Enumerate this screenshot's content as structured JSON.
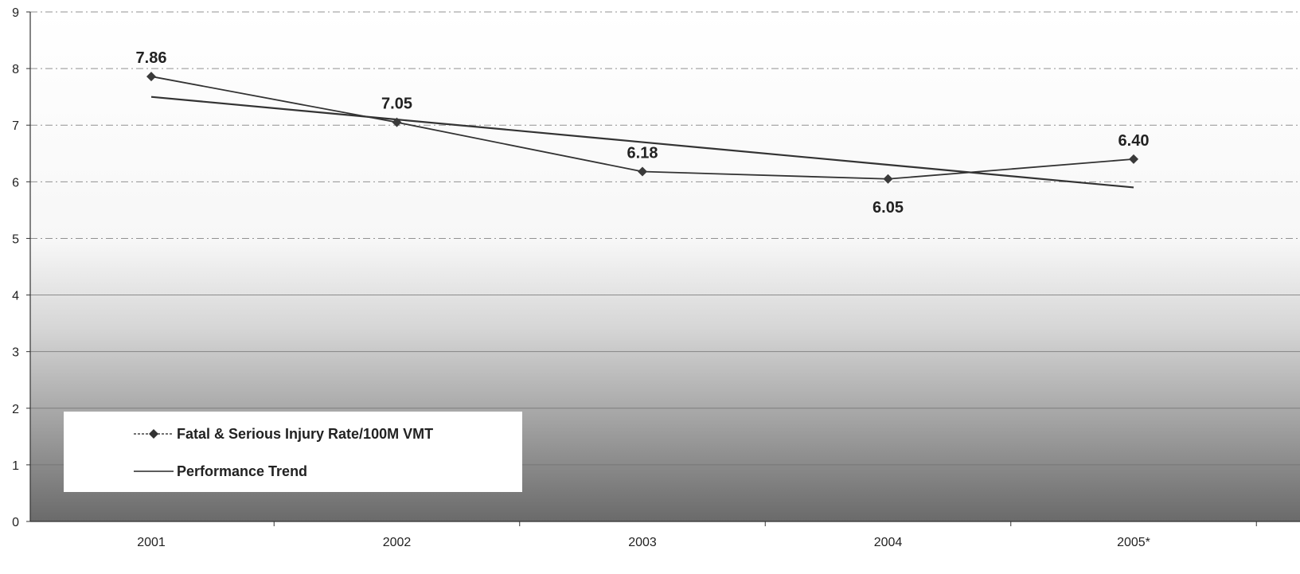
{
  "chart_data": {
    "type": "line",
    "title": "",
    "xlabel": "",
    "ylabel": "",
    "categories": [
      "2001",
      "2002",
      "2003",
      "2004",
      "2005*"
    ],
    "ylim": [
      0,
      9
    ],
    "yticks": [
      0,
      1,
      2,
      3,
      4,
      5,
      6,
      7,
      8,
      9
    ],
    "grid": true,
    "legend_position": "bottom-left",
    "background": "vertical gradient, white at top to dark gray at bottom",
    "series": [
      {
        "name": "Fatal & Serious Injury Rate/100M VMT",
        "values": [
          7.86,
          7.05,
          6.18,
          6.05,
          6.4
        ],
        "data_labels": [
          "7.86",
          "7.05",
          "6.18",
          "6.05",
          "6.40"
        ],
        "marker": "diamond",
        "color": "#333333"
      },
      {
        "name": "Performance Trend",
        "values": [
          7.5,
          7.1,
          6.7,
          6.3,
          5.9
        ],
        "marker": "none",
        "color": "#333333"
      }
    ]
  }
}
